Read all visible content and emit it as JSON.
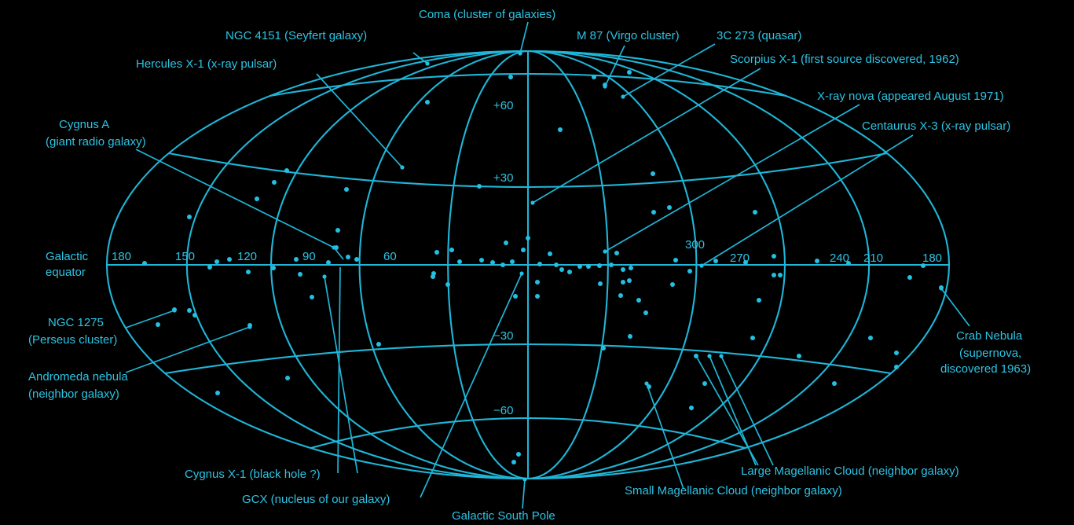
{
  "colors": {
    "background": "#000000",
    "accent": "#2cc4e4"
  },
  "grid_labels": {
    "lat_plus60": "+60",
    "lat_plus30": "+30",
    "lat_minus30": "−30",
    "lat_minus60": "−60",
    "lon_180_left": "180",
    "lon_150": "150",
    "lon_120": "120",
    "lon_90": "90",
    "lon_60": "60",
    "lon_300": "300",
    "lon_270": "270",
    "lon_240": "240",
    "lon_210": "210",
    "lon_180_right": "180",
    "equator_line1": "Galactic",
    "equator_line2": "equator"
  },
  "labels": {
    "coma": "Coma (cluster of galaxies)",
    "ngc4151": "NGC 4151 (Seyfert galaxy)",
    "m87": "M 87 (Virgo cluster)",
    "c3c273": "3C 273 (quasar)",
    "hercules": "Hercules X-1 (x-ray pulsar)",
    "scorpius": "Scorpius X-1 (first source discovered, 1962)",
    "xraynova": "X-ray nova (appeared August 1971)",
    "cygnusa_1": "Cygnus A",
    "cygnusa_2": "(giant radio galaxy)",
    "centaurus": "Centaurus X-3 (x-ray pulsar)",
    "ngc1275_1": "NGC 1275",
    "ngc1275_2": "(Perseus cluster)",
    "andromeda_1": "Andromeda nebula",
    "andromeda_2": "(neighbor galaxy)",
    "crab_1": "Crab Nebula",
    "crab_2": "(supernova,",
    "crab_3": "discovered 1963)",
    "cygnusx1": "Cygnus X-1 (black hole ?)",
    "gcx": "GCX (nucleus of our galaxy)",
    "lmc": "Large Magellanic Cloud (neighbor galaxy)",
    "smc": "Small Magellanic Cloud (neighbor galaxy)",
    "southpole": "Galactic South Pole"
  }
}
